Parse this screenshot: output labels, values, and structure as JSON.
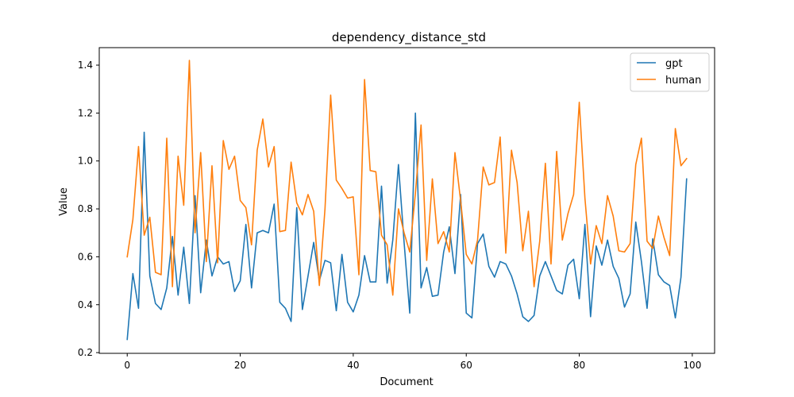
{
  "chart_data": {
    "type": "line",
    "title": "dependency_distance_std",
    "xlabel": "Document",
    "ylabel": "Value",
    "xlim": [
      -4.95,
      103.95
    ],
    "ylim": [
      0.197,
      1.473
    ],
    "xticks": [
      0,
      20,
      40,
      60,
      80,
      100
    ],
    "xtick_labels": [
      "0",
      "20",
      "40",
      "60",
      "80",
      "100"
    ],
    "yticks": [
      0.2,
      0.4,
      0.6,
      0.8,
      1.0,
      1.2,
      1.4
    ],
    "ytick_labels": [
      "0.2",
      "0.4",
      "0.6",
      "0.8",
      "1.0",
      "1.2",
      "1.4"
    ],
    "grid": false,
    "legend_position": "top-right",
    "x": [
      0,
      1,
      2,
      3,
      4,
      5,
      6,
      7,
      8,
      9,
      10,
      11,
      12,
      13,
      14,
      15,
      16,
      17,
      18,
      19,
      20,
      21,
      22,
      23,
      24,
      25,
      26,
      27,
      28,
      29,
      30,
      31,
      32,
      33,
      34,
      35,
      36,
      37,
      38,
      39,
      40,
      41,
      42,
      43,
      44,
      45,
      46,
      47,
      48,
      49,
      50,
      51,
      52,
      53,
      54,
      55,
      56,
      57,
      58,
      59,
      60,
      61,
      62,
      63,
      64,
      65,
      66,
      67,
      68,
      69,
      70,
      71,
      72,
      73,
      74,
      75,
      76,
      77,
      78,
      79,
      80,
      81,
      82,
      83,
      84,
      85,
      86,
      87,
      88,
      89,
      90,
      91,
      92,
      93,
      94,
      95,
      96,
      97,
      98,
      99
    ],
    "series": [
      {
        "name": "gpt",
        "color": "#1f77b4",
        "values": [
          0.255,
          0.53,
          0.385,
          1.12,
          0.52,
          0.405,
          0.38,
          0.47,
          0.685,
          0.44,
          0.64,
          0.405,
          0.855,
          0.45,
          0.67,
          0.52,
          0.6,
          0.57,
          0.58,
          0.455,
          0.5,
          0.735,
          0.47,
          0.7,
          0.71,
          0.7,
          0.82,
          0.41,
          0.385,
          0.33,
          0.805,
          0.38,
          0.52,
          0.66,
          0.5,
          0.585,
          0.575,
          0.375,
          0.61,
          0.41,
          0.37,
          0.44,
          0.605,
          0.495,
          0.495,
          0.895,
          0.49,
          0.67,
          0.985,
          0.66,
          0.365,
          1.2,
          0.47,
          0.555,
          0.435,
          0.44,
          0.62,
          0.725,
          0.53,
          0.86,
          0.365,
          0.345,
          0.655,
          0.695,
          0.56,
          0.515,
          0.58,
          0.57,
          0.52,
          0.445,
          0.35,
          0.33,
          0.355,
          0.52,
          0.58,
          0.52,
          0.46,
          0.445,
          0.565,
          0.59,
          0.425,
          0.735,
          0.35,
          0.645,
          0.565,
          0.67,
          0.56,
          0.51,
          0.39,
          0.445,
          0.745,
          0.58,
          0.385,
          0.675,
          0.525,
          0.495,
          0.48,
          0.345,
          0.515,
          0.925
        ]
      },
      {
        "name": "human",
        "color": "#ff7f0e",
        "values": [
          0.6,
          0.755,
          1.06,
          0.69,
          0.765,
          0.535,
          0.525,
          1.095,
          0.475,
          1.02,
          0.815,
          1.42,
          0.7,
          1.035,
          0.58,
          0.98,
          0.575,
          1.085,
          0.965,
          1.02,
          0.835,
          0.805,
          0.65,
          1.045,
          1.175,
          0.975,
          1.06,
          0.705,
          0.71,
          0.995,
          0.825,
          0.775,
          0.86,
          0.79,
          0.48,
          0.8,
          1.275,
          0.92,
          0.885,
          0.845,
          0.85,
          0.525,
          1.34,
          0.96,
          0.955,
          0.69,
          0.65,
          0.44,
          0.8,
          0.7,
          0.62,
          0.865,
          1.15,
          0.585,
          0.925,
          0.655,
          0.705,
          0.62,
          1.035,
          0.835,
          0.61,
          0.57,
          0.67,
          0.975,
          0.9,
          0.91,
          1.1,
          0.615,
          1.045,
          0.91,
          0.625,
          0.79,
          0.475,
          0.665,
          0.99,
          0.57,
          1.04,
          0.67,
          0.78,
          0.86,
          1.245,
          0.845,
          0.57,
          0.73,
          0.655,
          0.855,
          0.77,
          0.625,
          0.62,
          0.655,
          0.985,
          1.095,
          0.665,
          0.635,
          0.77,
          0.68,
          0.605,
          1.135,
          0.98,
          1.01
        ]
      }
    ]
  }
}
